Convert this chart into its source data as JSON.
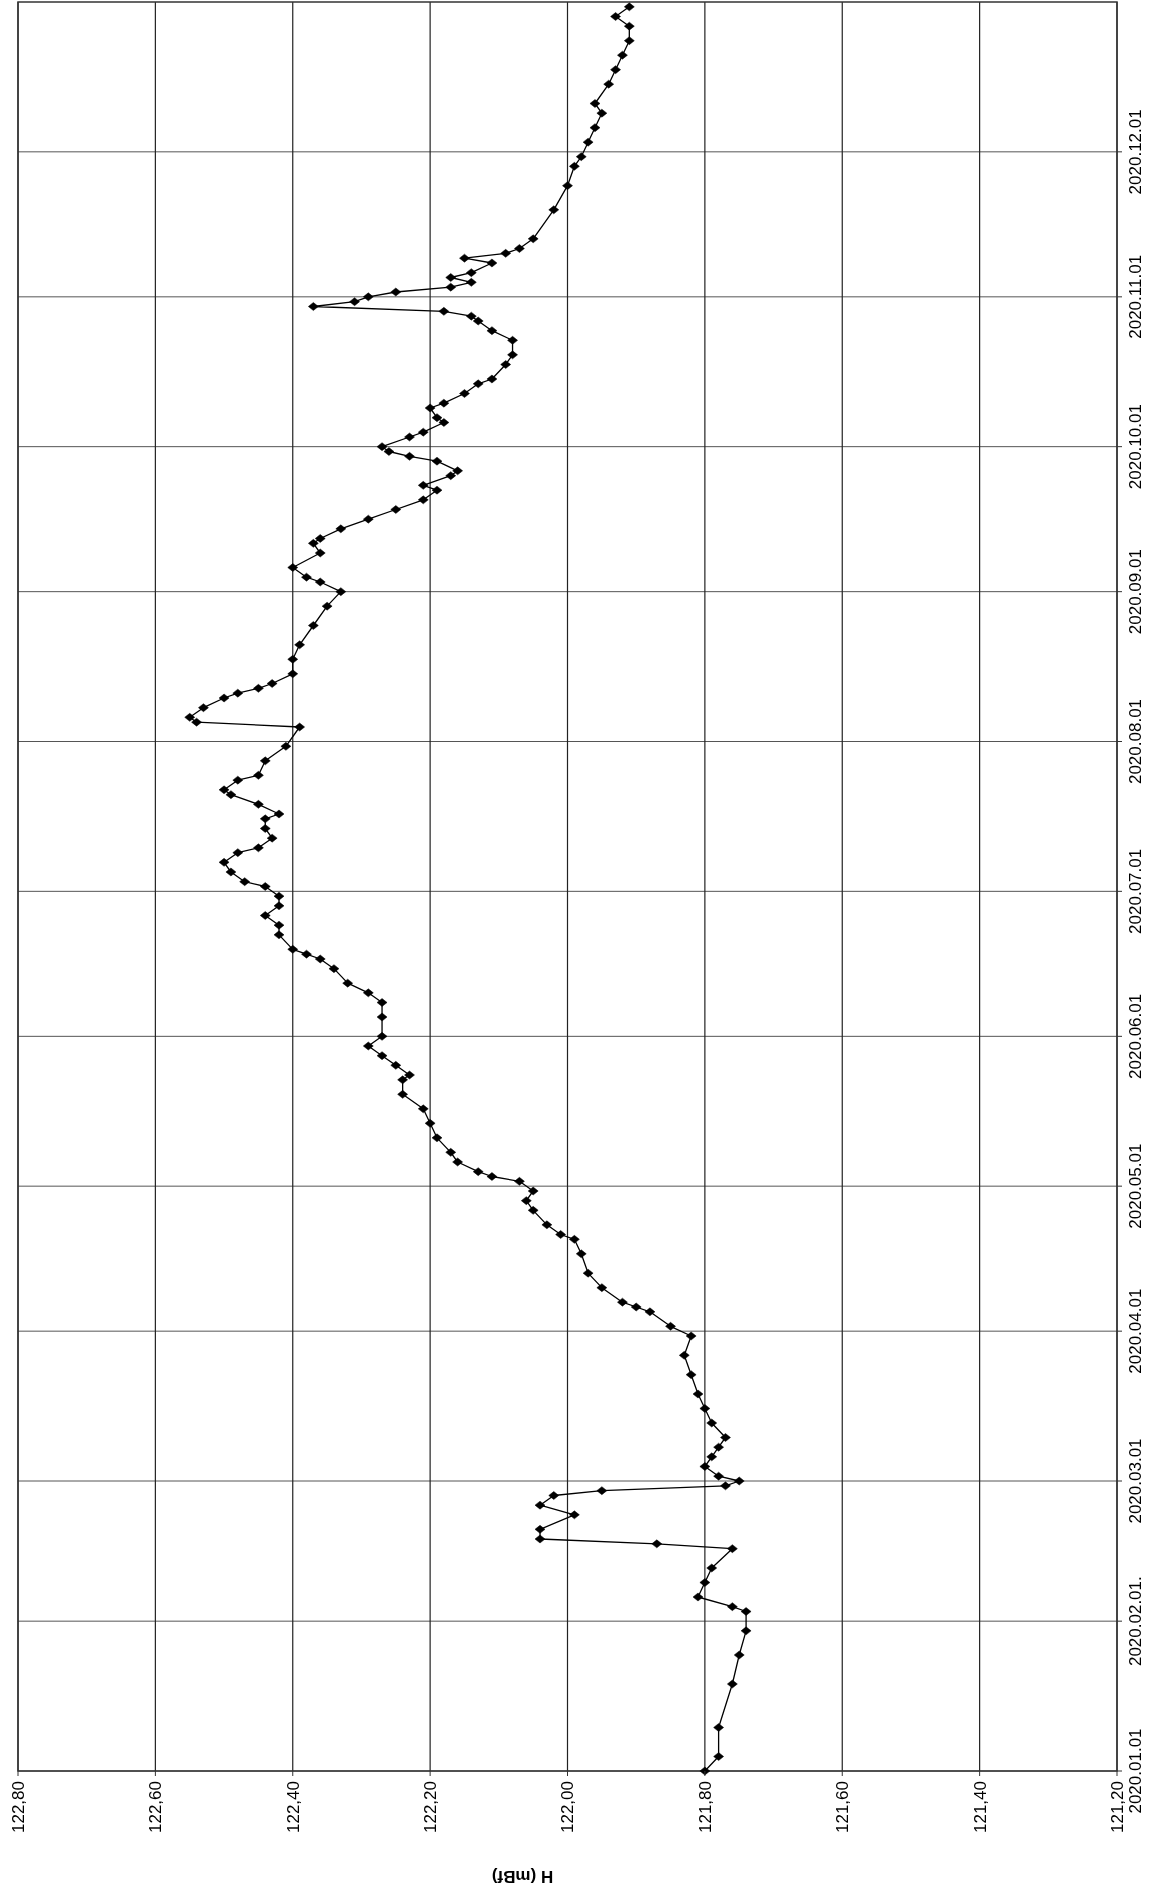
{
  "chart_data": {
    "type": "line",
    "orientation": "horizontal",
    "xlabel": "H (mBf)",
    "x": [
      "2020-01-01",
      "2020-01-04",
      "2020-01-10",
      "2020-01-19",
      "2020-01-25",
      "2020-01-30",
      "2020-02-03",
      "2020-02-04",
      "2020-02-06",
      "2020-02-09",
      "2020-02-12",
      "2020-02-16",
      "2020-02-17",
      "2020-02-18",
      "2020-02-20",
      "2020-02-23",
      "2020-02-25",
      "2020-02-27",
      "2020-02-28",
      "2020-02-29",
      "2020-03-01",
      "2020-03-02",
      "2020-03-04",
      "2020-03-06",
      "2020-03-08",
      "2020-03-10",
      "2020-03-13",
      "2020-03-16",
      "2020-03-19",
      "2020-03-23",
      "2020-03-27",
      "2020-03-31",
      "2020-04-02",
      "2020-04-05",
      "2020-04-06",
      "2020-04-07",
      "2020-04-10",
      "2020-04-13",
      "2020-04-17",
      "2020-04-20",
      "2020-04-21",
      "2020-04-23",
      "2020-04-26",
      "2020-04-28",
      "2020-04-30",
      "2020-05-02",
      "2020-05-03",
      "2020-05-04",
      "2020-05-06",
      "2020-05-08",
      "2020-05-11",
      "2020-05-14",
      "2020-05-17",
      "2020-05-20",
      "2020-05-23",
      "2020-05-24",
      "2020-05-26",
      "2020-05-28",
      "2020-05-30",
      "2020-06-01",
      "2020-06-05",
      "2020-06-08",
      "2020-06-10",
      "2020-06-12",
      "2020-06-15",
      "2020-06-17",
      "2020-06-18",
      "2020-06-19",
      "2020-06-22",
      "2020-06-24",
      "2020-06-26",
      "2020-06-28",
      "2020-06-30",
      "2020-07-02",
      "2020-07-03",
      "2020-07-05",
      "2020-07-07",
      "2020-07-09",
      "2020-07-10",
      "2020-07-12",
      "2020-07-14",
      "2020-07-16",
      "2020-07-17",
      "2020-07-19",
      "2020-07-21",
      "2020-07-22",
      "2020-07-24",
      "2020-07-25",
      "2020-07-28",
      "2020-07-31",
      "2020-08-04",
      "2020-08-05",
      "2020-08-06",
      "2020-08-08",
      "2020-08-10",
      "2020-08-11",
      "2020-08-12",
      "2020-08-13",
      "2020-08-15",
      "2020-08-18",
      "2020-08-21",
      "2020-08-25",
      "2020-08-29",
      "2020-09-01",
      "2020-09-03",
      "2020-09-04",
      "2020-09-06",
      "2020-09-09",
      "2020-09-11",
      "2020-09-12",
      "2020-09-14",
      "2020-09-16",
      "2020-09-18",
      "2020-09-20",
      "2020-09-22",
      "2020-09-23",
      "2020-09-25",
      "2020-09-26",
      "2020-09-28",
      "2020-09-29",
      "2020-09-30",
      "2020-10-01",
      "2020-10-03",
      "2020-10-04",
      "2020-10-06",
      "2020-10-07",
      "2020-10-09",
      "2020-10-10",
      "2020-10-12",
      "2020-10-14",
      "2020-10-15",
      "2020-10-18",
      "2020-10-20",
      "2020-10-23",
      "2020-10-25",
      "2020-10-27",
      "2020-10-28",
      "2020-10-29",
      "2020-10-30",
      "2020-10-31",
      "2020-11-01",
      "2020-11-02",
      "2020-11-03",
      "2020-11-04",
      "2020-11-05",
      "2020-11-06",
      "2020-11-08",
      "2020-11-09",
      "2020-11-10",
      "2020-11-11",
      "2020-11-13",
      "2020-11-19",
      "2020-11-24",
      "2020-11-28",
      "2020-11-30",
      "2020-12-03",
      "2020-12-06",
      "2020-12-09",
      "2020-12-11",
      "2020-12-15",
      "2020-12-18",
      "2020-12-21",
      "2020-12-24",
      "2020-12-27",
      "2020-12-29",
      "2020-12-31"
    ],
    "series": [
      {
        "color": "#000000",
        "values": [
          121.8,
          121.78,
          121.78,
          121.76,
          121.75,
          121.74,
          121.74,
          121.76,
          121.81,
          121.8,
          121.79,
          121.76,
          121.87,
          122.04,
          122.04,
          121.99,
          122.04,
          122.02,
          121.95,
          121.77,
          121.75,
          121.78,
          121.8,
          121.79,
          121.78,
          121.77,
          121.79,
          121.8,
          121.81,
          121.82,
          121.83,
          121.82,
          121.85,
          121.88,
          121.9,
          121.92,
          121.95,
          121.97,
          121.98,
          121.99,
          122.01,
          122.03,
          122.05,
          122.06,
          122.05,
          122.07,
          122.11,
          122.13,
          122.16,
          122.17,
          122.19,
          122.2,
          122.21,
          122.24,
          122.24,
          122.23,
          122.25,
          122.27,
          122.29,
          122.27,
          122.27,
          122.27,
          122.29,
          122.32,
          122.34,
          122.36,
          122.38,
          122.4,
          122.42,
          122.42,
          122.44,
          122.42,
          122.42,
          122.44,
          122.47,
          122.49,
          122.5,
          122.48,
          122.45,
          122.43,
          122.44,
          122.44,
          122.42,
          122.45,
          122.49,
          122.5,
          122.48,
          122.45,
          122.44,
          122.41,
          122.39,
          122.54,
          122.55,
          122.53,
          122.5,
          122.48,
          122.45,
          122.43,
          122.4,
          122.4,
          122.39,
          122.37,
          122.35,
          122.33,
          122.36,
          122.38,
          122.4,
          122.36,
          122.37,
          122.36,
          122.33,
          122.29,
          122.25,
          122.21,
          122.19,
          122.21,
          122.17,
          122.16,
          122.19,
          122.23,
          122.26,
          122.27,
          122.23,
          122.21,
          122.18,
          122.19,
          122.2,
          122.18,
          122.15,
          122.13,
          122.11,
          122.09,
          122.08,
          122.08,
          122.11,
          122.13,
          122.14,
          122.18,
          122.37,
          122.31,
          122.29,
          122.25,
          122.17,
          122.14,
          122.17,
          122.14,
          122.11,
          122.15,
          122.09,
          122.07,
          122.05,
          122.02,
          122.0,
          121.99,
          121.98,
          121.97,
          121.96,
          121.95,
          121.96,
          121.94,
          121.93,
          121.92,
          121.91,
          121.91,
          121.93,
          121.91
        ]
      }
    ],
    "ylim": [
      "2020-01-01",
      "2021-01-01"
    ],
    "yticks": [
      {
        "value": "2020-01-01",
        "label": "2020.01.01"
      },
      {
        "value": "2020-02-01",
        "label": "2020.02.01."
      },
      {
        "value": "2020-03-01",
        "label": "2020.03.01"
      },
      {
        "value": "2020-04-01",
        "label": "2020.04.01"
      },
      {
        "value": "2020-05-01",
        "label": "2020.05.01"
      },
      {
        "value": "2020-06-01",
        "label": "2020.06.01"
      },
      {
        "value": "2020-07-01",
        "label": "2020.07.01"
      },
      {
        "value": "2020-08-01",
        "label": "2020.08.01"
      },
      {
        "value": "2020-09-01",
        "label": "2020.09.01"
      },
      {
        "value": "2020-10-01",
        "label": "2020.10.01"
      },
      {
        "value": "2020-11-01",
        "label": "2020.11.01"
      },
      {
        "value": "2020-12-01",
        "label": "2020.12.01"
      }
    ],
    "xlim": [
      122.8,
      121.2
    ],
    "xticks": [
      {
        "value": 121.2,
        "label": "121,20"
      },
      {
        "value": 121.4,
        "label": "121,40"
      },
      {
        "value": 121.6,
        "label": "121,60"
      },
      {
        "value": 121.8,
        "label": "121,80"
      },
      {
        "value": 122.0,
        "label": "122,00"
      },
      {
        "value": 122.2,
        "label": "122,20"
      },
      {
        "value": 122.4,
        "label": "122,40"
      },
      {
        "value": 122.6,
        "label": "122,60"
      },
      {
        "value": 122.8,
        "label": "122,80"
      }
    ],
    "grid": true,
    "marker": "diamond",
    "line_style": "solid"
  }
}
